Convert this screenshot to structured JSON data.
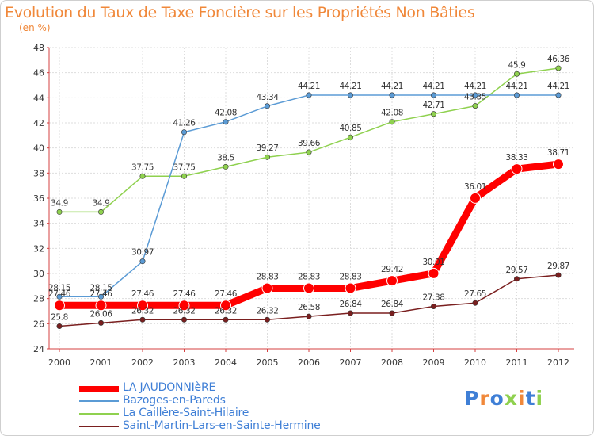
{
  "chart_data": {
    "type": "line",
    "title": "Evolution du Taux de Taxe Foncière sur les Propriétés Non Bâties",
    "subtitle": "(en %)",
    "xlabel": "",
    "ylabel": "",
    "x": [
      "2000",
      "2001",
      "2002",
      "2003",
      "2004",
      "2005",
      "2006",
      "2007",
      "2008",
      "2009",
      "2010",
      "2011",
      "2012"
    ],
    "ylim": [
      24,
      48
    ],
    "yticks": [
      "24",
      "26",
      "28",
      "30",
      "32",
      "34",
      "36",
      "38",
      "40",
      "42",
      "44",
      "46",
      "48"
    ],
    "grid": true,
    "legend_position": "bottom-left",
    "series": [
      {
        "name": "LA JAUDONNIèRE",
        "color": "#ff0000",
        "values": [
          27.46,
          27.46,
          27.46,
          27.46,
          27.46,
          28.83,
          28.83,
          28.83,
          29.42,
          30.01,
          36.01,
          38.33,
          38.71
        ],
        "labels": [
          "27.46",
          "27.46",
          "27.46",
          "27.46",
          "27.46",
          "28.83",
          "28.83",
          "28.83",
          "29.42",
          "30.01",
          "36.01",
          "38.33",
          "38.71"
        ]
      },
      {
        "name": "Bazoges-en-Pareds",
        "color": "#5b9bd5",
        "values": [
          28.15,
          28.15,
          30.97,
          41.26,
          42.08,
          43.34,
          44.21,
          44.21,
          44.21,
          44.21,
          44.21,
          44.21,
          44.21
        ],
        "labels": [
          "28.15",
          "28.15",
          "30.97",
          "41.26",
          "42.08",
          "43.34",
          "44.21",
          "44.21",
          "44.21",
          "44.21",
          "44.21",
          "44.21",
          "44.21"
        ]
      },
      {
        "name": "La Caillère-Saint-Hilaire",
        "color": "#8fd14f",
        "values": [
          34.9,
          34.9,
          37.75,
          37.75,
          38.5,
          39.27,
          39.66,
          40.85,
          42.08,
          42.71,
          43.35,
          45.9,
          46.36
        ],
        "labels": [
          "34.9",
          "34.9",
          "37.75",
          "37.75",
          "38.5",
          "39.27",
          "39.66",
          "40.85",
          "42.08",
          "42.71",
          "43.35",
          "45.9",
          "46.36"
        ]
      },
      {
        "name": "Saint-Martin-Lars-en-Sainte-Hermine",
        "color": "#7a1f1f",
        "values": [
          25.8,
          26.06,
          26.32,
          26.32,
          26.32,
          26.32,
          26.58,
          26.84,
          26.84,
          27.38,
          27.65,
          29.57,
          29.87
        ],
        "labels": [
          "25.8",
          "26.06",
          "26.32",
          "26.32",
          "26.32",
          "26.32",
          "26.58",
          "26.84",
          "26.84",
          "27.38",
          "27.65",
          "29.57",
          "29.87"
        ]
      }
    ]
  },
  "logo": {
    "letters": [
      "P",
      "r",
      "o",
      "x",
      "i",
      "t",
      "i"
    ]
  }
}
